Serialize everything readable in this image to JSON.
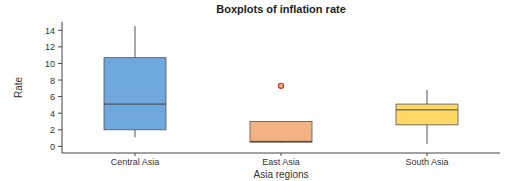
{
  "chart_data": {
    "type": "box",
    "title": "Boxplots of inflation rate",
    "x_label": "Asia regions",
    "y_label": "Rate",
    "categories": [
      "Central Asia",
      "East Asia",
      "South Asia"
    ],
    "boxes": [
      {
        "min": 1.1,
        "q1": 2.0,
        "median": 5.1,
        "q3": 10.7,
        "max": 14.5,
        "outliers": []
      },
      {
        "min": 0.4,
        "q1": 0.5,
        "median": 0.6,
        "q3": 3.0,
        "max": 3.0,
        "outliers": [
          7.3
        ]
      },
      {
        "min": 0.3,
        "q1": 2.6,
        "median": 4.4,
        "q3": 5.1,
        "max": 6.8,
        "outliers": []
      }
    ],
    "colors": [
      "#6fa8dc",
      "#f4b183",
      "#ffd966"
    ],
    "ylim": [
      -0.8,
      15
    ],
    "yticks": [
      0,
      2,
      4,
      6,
      8,
      10,
      12,
      14
    ],
    "grid": false
  }
}
